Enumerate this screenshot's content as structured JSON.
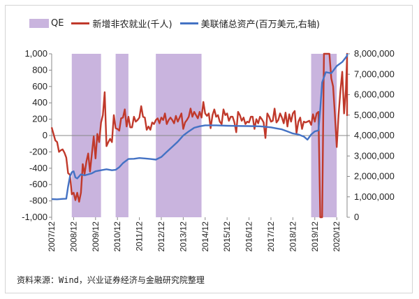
{
  "legend": {
    "qe_label": "QE",
    "payroll_label": "新增非农就业(千人)",
    "assets_label": "美联储总资产(百万美元,右轴)"
  },
  "source_note": "资料来源：Wind，兴业证券经济与金融研究院整理",
  "colors": {
    "qe": "#c9b4de",
    "payroll": "#c0392b",
    "assets": "#4472c4",
    "axis": "#888888"
  },
  "chart_data": {
    "type": "line",
    "x_unit": "month",
    "x_range": [
      "2007-12",
      "2020-12"
    ],
    "x_tick_labels": [
      "2007/12",
      "2008/12",
      "2009/12",
      "2010/12",
      "2011/12",
      "2012/12",
      "2013/12",
      "2014/12",
      "2015/12",
      "2016/12",
      "2017/12",
      "2018/12",
      "2019/12",
      "2020/12"
    ],
    "y_left": {
      "label": "新增非农就业(千人)",
      "ylim": [
        -1000,
        1000
      ],
      "tick_labels": [
        "1,000",
        "800",
        "600",
        "400",
        "200",
        "0",
        "-200",
        "-400",
        "-600",
        "-800",
        "-1,000"
      ]
    },
    "y_right": {
      "label": "美联储总资产(百万美元,右轴)",
      "ylim": [
        0,
        8000000
      ],
      "tick_labels": [
        "8,000,000",
        "7,000,000",
        "6,000,000",
        "5,000,000",
        "4,000,000",
        "3,000,000",
        "2,000,000",
        "1,000,000",
        "0"
      ]
    },
    "qe_periods": [
      {
        "start": "2008-11",
        "end": "2010-03"
      },
      {
        "start": "2010-11",
        "end": "2011-06"
      },
      {
        "start": "2012-09",
        "end": "2014-10"
      },
      {
        "start": "2019-10",
        "end": "2020-12"
      }
    ],
    "series": [
      {
        "name": "新增非农就业(千人)",
        "axis": "left",
        "points": [
          [
            "2007-12",
            100
          ],
          [
            "2008-01",
            20
          ],
          [
            "2008-02",
            -60
          ],
          [
            "2008-03",
            -80
          ],
          [
            "2008-04",
            -200
          ],
          [
            "2008-05",
            -180
          ],
          [
            "2008-06",
            -170
          ],
          [
            "2008-07",
            -210
          ],
          [
            "2008-08",
            -270
          ],
          [
            "2008-09",
            -460
          ],
          [
            "2008-10",
            -480
          ],
          [
            "2008-11",
            -720
          ],
          [
            "2008-12",
            -700
          ],
          [
            "2009-01",
            -790
          ],
          [
            "2009-02",
            -700
          ],
          [
            "2009-03",
            -810
          ],
          [
            "2009-04",
            -700
          ],
          [
            "2009-05",
            -350
          ],
          [
            "2009-06",
            -470
          ],
          [
            "2009-07",
            -320
          ],
          [
            "2009-08",
            -220
          ],
          [
            "2009-09",
            -440
          ],
          [
            "2009-10",
            -220
          ],
          [
            "2009-11",
            -10
          ],
          [
            "2009-12",
            -280
          ],
          [
            "2010-01",
            20
          ],
          [
            "2010-02",
            -80
          ],
          [
            "2010-03",
            160
          ],
          [
            "2010-04",
            250
          ],
          [
            "2010-05",
            530
          ],
          [
            "2010-06",
            -130
          ],
          [
            "2010-07",
            -80
          ],
          [
            "2010-08",
            -40
          ],
          [
            "2010-09",
            -80
          ],
          [
            "2010-10",
            250
          ],
          [
            "2010-11",
            90
          ],
          [
            "2010-12",
            80
          ],
          [
            "2011-01",
            60
          ],
          [
            "2011-02",
            210
          ],
          [
            "2011-03",
            220
          ],
          [
            "2011-04",
            320
          ],
          [
            "2011-05",
            110
          ],
          [
            "2011-06",
            230
          ],
          [
            "2011-07",
            100
          ],
          [
            "2011-08",
            100
          ],
          [
            "2011-09",
            230
          ],
          [
            "2011-10",
            170
          ],
          [
            "2011-11",
            190
          ],
          [
            "2011-12",
            220
          ],
          [
            "2012-01",
            360
          ],
          [
            "2012-02",
            230
          ],
          [
            "2012-03",
            220
          ],
          [
            "2012-04",
            70
          ],
          [
            "2012-05",
            110
          ],
          [
            "2012-06",
            70
          ],
          [
            "2012-07",
            160
          ],
          [
            "2012-08",
            140
          ],
          [
            "2012-09",
            190
          ],
          [
            "2012-10",
            210
          ],
          [
            "2012-11",
            150
          ],
          [
            "2012-12",
            220
          ],
          [
            "2013-01",
            190
          ],
          [
            "2013-02",
            270
          ],
          [
            "2013-03",
            140
          ],
          [
            "2013-04",
            190
          ],
          [
            "2013-05",
            220
          ],
          [
            "2013-06",
            190
          ],
          [
            "2013-07",
            150
          ],
          [
            "2013-08",
            240
          ],
          [
            "2013-09",
            170
          ],
          [
            "2013-10",
            220
          ],
          [
            "2013-11",
            270
          ],
          [
            "2013-12",
            80
          ],
          [
            "2014-01",
            160
          ],
          [
            "2014-02",
            190
          ],
          [
            "2014-03",
            230
          ],
          [
            "2014-04",
            330
          ],
          [
            "2014-05",
            230
          ],
          [
            "2014-06",
            290
          ],
          [
            "2014-07",
            250
          ],
          [
            "2014-08",
            210
          ],
          [
            "2014-09",
            290
          ],
          [
            "2014-10",
            220
          ],
          [
            "2014-11",
            410
          ],
          [
            "2014-12",
            270
          ],
          [
            "2015-01",
            240
          ],
          [
            "2015-02",
            270
          ],
          [
            "2015-03",
            90
          ],
          [
            "2015-04",
            250
          ],
          [
            "2015-05",
            320
          ],
          [
            "2015-06",
            230
          ],
          [
            "2015-07",
            250
          ],
          [
            "2015-08",
            170
          ],
          [
            "2015-09",
            140
          ],
          [
            "2015-10",
            320
          ],
          [
            "2015-11",
            250
          ],
          [
            "2015-12",
            270
          ],
          [
            "2016-01",
            180
          ],
          [
            "2016-02",
            230
          ],
          [
            "2016-03",
            230
          ],
          [
            "2016-04",
            160
          ],
          [
            "2016-05",
            40
          ],
          [
            "2016-06",
            290
          ],
          [
            "2016-07",
            250
          ],
          [
            "2016-08",
            180
          ],
          [
            "2016-09",
            220
          ],
          [
            "2016-10",
            140
          ],
          [
            "2016-11",
            170
          ],
          [
            "2016-12",
            160
          ],
          [
            "2017-01",
            230
          ],
          [
            "2017-02",
            230
          ],
          [
            "2017-03",
            80
          ],
          [
            "2017-04",
            200
          ],
          [
            "2017-05",
            150
          ],
          [
            "2017-06",
            230
          ],
          [
            "2017-07",
            200
          ],
          [
            "2017-08",
            160
          ],
          [
            "2017-09",
            -30
          ],
          [
            "2017-10",
            270
          ],
          [
            "2017-11",
            230
          ],
          [
            "2017-12",
            170
          ],
          [
            "2018-01",
            180
          ],
          [
            "2018-02",
            330
          ],
          [
            "2018-03",
            160
          ],
          [
            "2018-04",
            190
          ],
          [
            "2018-05",
            270
          ],
          [
            "2018-06",
            220
          ],
          [
            "2018-07",
            150
          ],
          [
            "2018-08",
            280
          ],
          [
            "2018-09",
            110
          ],
          [
            "2018-10",
            260
          ],
          [
            "2018-11",
            170
          ],
          [
            "2018-12",
            270
          ],
          [
            "2019-01",
            300
          ],
          [
            "2019-02",
            30
          ],
          [
            "2019-03",
            170
          ],
          [
            "2019-04",
            220
          ],
          [
            "2019-05",
            80
          ],
          [
            "2019-06",
            170
          ],
          [
            "2019-07",
            160
          ],
          [
            "2019-08",
            170
          ],
          [
            "2019-09",
            180
          ],
          [
            "2019-10",
            130
          ],
          [
            "2019-11",
            260
          ],
          [
            "2019-12",
            170
          ],
          [
            "2020-01",
            270
          ],
          [
            "2020-02",
            290
          ],
          [
            "2020-03",
            -1000
          ],
          [
            "2020-04",
            -1000
          ],
          [
            "2020-05",
            1000
          ],
          [
            "2020-06",
            1000
          ],
          [
            "2020-07",
            1000
          ],
          [
            "2020-08",
            1000
          ],
          [
            "2020-09",
            700
          ],
          [
            "2020-10",
            600
          ],
          [
            "2020-11",
            250
          ],
          [
            "2020-12",
            -140
          ],
          [
            "2021-01",
            250
          ],
          [
            "2021-02",
            540
          ],
          [
            "2021-03",
            780
          ],
          [
            "2021-04",
            270
          ],
          [
            "2021-05",
            560
          ],
          [
            "2021-06",
            960
          ],
          [
            "2021-07",
            1000
          ],
          [
            "2021-08",
            240
          ]
        ]
      },
      {
        "name": "美联储总资产(百万美元,右轴)",
        "axis": "right",
        "points": [
          [
            "2007-12",
            890000
          ],
          [
            "2008-03",
            880000
          ],
          [
            "2008-06",
            900000
          ],
          [
            "2008-08",
            910000
          ],
          [
            "2008-09",
            1500000
          ],
          [
            "2008-10",
            2000000
          ],
          [
            "2008-11",
            2200000
          ],
          [
            "2008-12",
            2250000
          ],
          [
            "2009-01",
            1950000
          ],
          [
            "2009-02",
            1900000
          ],
          [
            "2009-04",
            2100000
          ],
          [
            "2009-06",
            2050000
          ],
          [
            "2009-08",
            2100000
          ],
          [
            "2009-10",
            2150000
          ],
          [
            "2009-12",
            2250000
          ],
          [
            "2010-03",
            2300000
          ],
          [
            "2010-06",
            2350000
          ],
          [
            "2010-09",
            2300000
          ],
          [
            "2010-11",
            2320000
          ],
          [
            "2011-01",
            2450000
          ],
          [
            "2011-03",
            2650000
          ],
          [
            "2011-06",
            2850000
          ],
          [
            "2011-09",
            2860000
          ],
          [
            "2011-12",
            2900000
          ],
          [
            "2012-03",
            2880000
          ],
          [
            "2012-06",
            2850000
          ],
          [
            "2012-09",
            2820000
          ],
          [
            "2012-12",
            2950000
          ],
          [
            "2013-03",
            3200000
          ],
          [
            "2013-06",
            3450000
          ],
          [
            "2013-09",
            3700000
          ],
          [
            "2013-12",
            4000000
          ],
          [
            "2014-03",
            4200000
          ],
          [
            "2014-06",
            4380000
          ],
          [
            "2014-09",
            4450000
          ],
          [
            "2014-12",
            4500000
          ],
          [
            "2015-06",
            4500000
          ],
          [
            "2015-12",
            4480000
          ],
          [
            "2016-06",
            4470000
          ],
          [
            "2016-12",
            4460000
          ],
          [
            "2017-06",
            4450000
          ],
          [
            "2017-12",
            4400000
          ],
          [
            "2018-03",
            4350000
          ],
          [
            "2018-06",
            4300000
          ],
          [
            "2018-09",
            4200000
          ],
          [
            "2018-12",
            4100000
          ],
          [
            "2019-03",
            4050000
          ],
          [
            "2019-06",
            3950000
          ],
          [
            "2019-08",
            3800000
          ],
          [
            "2019-10",
            4050000
          ],
          [
            "2019-12",
            4200000
          ],
          [
            "2020-02",
            4250000
          ],
          [
            "2020-03",
            5300000
          ],
          [
            "2020-04",
            6600000
          ],
          [
            "2020-06",
            7100000
          ],
          [
            "2020-09",
            7050000
          ],
          [
            "2020-12",
            7400000
          ],
          [
            "2021-03",
            7600000
          ],
          [
            "2021-06",
            7900000
          ],
          [
            "2021-08",
            8050000
          ]
        ]
      }
    ]
  }
}
